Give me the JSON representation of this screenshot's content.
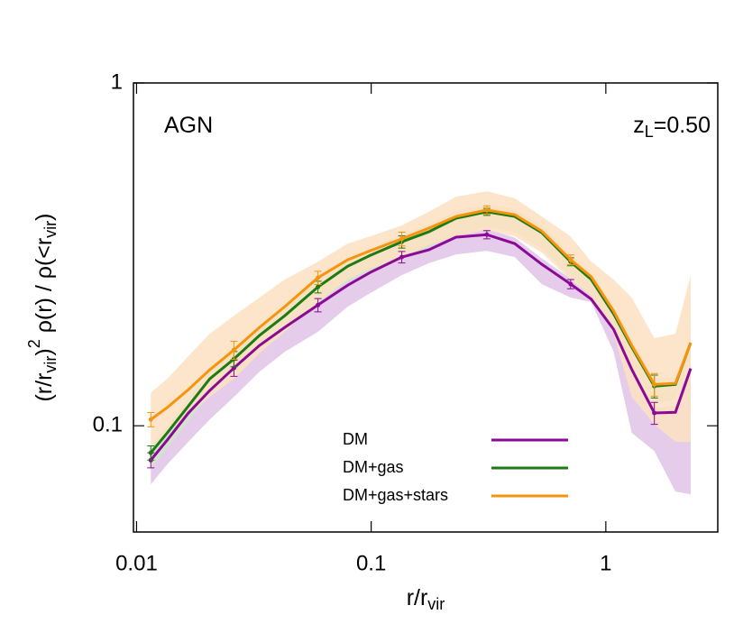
{
  "chart_data": {
    "type": "line",
    "annotations": [
      {
        "parts": [
          {
            "text": "AGN"
          }
        ],
        "corner": "top-left"
      },
      {
        "parts": [
          {
            "text": "z"
          },
          {
            "text": "L",
            "shift": "sub"
          },
          {
            "text": "=0.50"
          }
        ],
        "corner": "top-right"
      }
    ],
    "xlabel": [
      {
        "text": "r/r"
      },
      {
        "text": "vir",
        "shift": "sub"
      }
    ],
    "ylabel": [
      {
        "text": "(r/r"
      },
      {
        "text": "vir",
        "shift": "sub"
      },
      {
        "text": ")"
      },
      {
        "text": "2",
        "shift": "sup"
      },
      {
        "text": " ρ(r) / ρ(<r"
      },
      {
        "text": "vir",
        "shift": "sub"
      },
      {
        "text": ")"
      }
    ],
    "xscale": "log",
    "yscale": "log",
    "xlim": [
      0.0097,
      3.0
    ],
    "ylim": [
      0.049,
      1
    ],
    "xticks": [
      0.01,
      0.1,
      1
    ],
    "yticks": [
      0.1,
      1
    ],
    "legend": "bottom-center",
    "x": [
      0.0115,
      0.0135,
      0.0166,
      0.0205,
      0.026,
      0.0334,
      0.0428,
      0.0593,
      0.0794,
      0.099,
      0.135,
      0.176,
      0.23,
      0.311,
      0.409,
      0.533,
      0.708,
      0.867,
      1.08,
      1.29,
      1.61,
      1.98,
      2.3
    ],
    "series": [
      {
        "name": "DM",
        "color": "#8b0a95",
        "band_color": "#e0c3e6",
        "values": [
          0.0794,
          0.0908,
          0.1088,
          0.1267,
          0.1474,
          0.1715,
          0.1936,
          0.225,
          0.257,
          0.28,
          0.3105,
          0.326,
          0.355,
          0.361,
          0.34,
          0.296,
          0.259,
          0.234,
          0.191,
          0.146,
          0.109,
          0.1095,
          0.147
        ],
        "errors": [
          0.004,
          null,
          null,
          null,
          0.008,
          null,
          null,
          0.01,
          null,
          null,
          0.012,
          null,
          null,
          0.01,
          null,
          null,
          0.008,
          null,
          null,
          null,
          0.008,
          null,
          null
        ],
        "band_low": [
          0.0675,
          0.0771,
          0.0897,
          0.1043,
          0.1214,
          0.1438,
          0.1643,
          0.188,
          0.2225,
          0.2437,
          0.275,
          0.298,
          0.316,
          0.324,
          0.3105,
          0.259,
          0.2366,
          0.2295,
          0.1643,
          0.0953,
          0.0844,
          0.0643,
          0.0631
        ],
        "band_high": [
          0.083,
          0.094,
          0.113,
          0.132,
          0.153,
          0.178,
          0.201,
          0.234,
          0.267,
          0.291,
          0.323,
          0.339,
          0.369,
          0.375,
          0.354,
          0.308,
          0.269,
          0.243,
          0.199,
          0.152,
          0.113,
          0.114,
          0.153
        ]
      },
      {
        "name": "DM+gas",
        "color": "#1e7a12",
        "band_color": "#cfe8c8",
        "values": [
          0.0834,
          0.0953,
          0.114,
          0.137,
          0.1566,
          0.1834,
          0.2094,
          0.254,
          0.292,
          0.314,
          0.344,
          0.368,
          0.403,
          0.421,
          0.408,
          0.366,
          0.301,
          0.267,
          0.212,
          0.1695,
          0.1305,
          0.132,
          0.1746
        ],
        "errors": [
          0.004,
          null,
          null,
          null,
          0.008,
          null,
          null,
          0.01,
          null,
          null,
          0.014,
          null,
          null,
          0.01,
          null,
          null,
          0.008,
          null,
          null,
          null,
          0.01,
          null,
          null
        ],
        "band_low": [
          0.075,
          0.086,
          0.103,
          0.123,
          0.141,
          0.165,
          0.188,
          0.229,
          0.263,
          0.283,
          0.31,
          0.331,
          0.363,
          0.379,
          0.367,
          0.329,
          0.271,
          0.24,
          0.191,
          0.153,
          0.117,
          0.119,
          0.157
        ],
        "band_high": [
          0.0876,
          0.1,
          0.12,
          0.144,
          0.164,
          0.193,
          0.22,
          0.267,
          0.307,
          0.33,
          0.361,
          0.386,
          0.423,
          0.442,
          0.428,
          0.384,
          0.316,
          0.28,
          0.223,
          0.178,
          0.137,
          0.139,
          0.183
        ]
      },
      {
        "name": "DM+gas+stars",
        "color": "#f7940e",
        "band_color": "#fde0c2",
        "values": [
          0.1043,
          0.113,
          0.1274,
          0.1456,
          0.1664,
          0.1936,
          0.2225,
          0.2703,
          0.305,
          0.324,
          0.351,
          0.377,
          0.408,
          0.426,
          0.413,
          0.37,
          0.305,
          0.272,
          0.216,
          0.1715,
          0.132,
          0.133,
          0.1746
        ],
        "errors": [
          0.005,
          null,
          null,
          null,
          0.01,
          null,
          null,
          0.012,
          null,
          null,
          0.016,
          null,
          null,
          0.012,
          null,
          null,
          0.01,
          null,
          null,
          null,
          0.01,
          null,
          null
        ],
        "band_low": [
          0.0869,
          0.0953,
          0.1076,
          0.1214,
          0.137,
          0.1625,
          0.188,
          0.2295,
          0.267,
          0.287,
          0.3105,
          0.336,
          0.357,
          0.372,
          0.357,
          0.32,
          0.267,
          0.239,
          0.1855,
          0.1214,
          0.101,
          0.0897,
          0.0897
        ],
        "band_high": [
          0.125,
          0.137,
          0.1595,
          0.1855,
          0.2094,
          0.2366,
          0.267,
          0.301,
          0.34,
          0.357,
          0.384,
          0.421,
          0.466,
          0.483,
          0.461,
          0.408,
          0.357,
          0.301,
          0.267,
          0.2366,
          0.18,
          0.1855,
          0.275
        ]
      }
    ]
  }
}
